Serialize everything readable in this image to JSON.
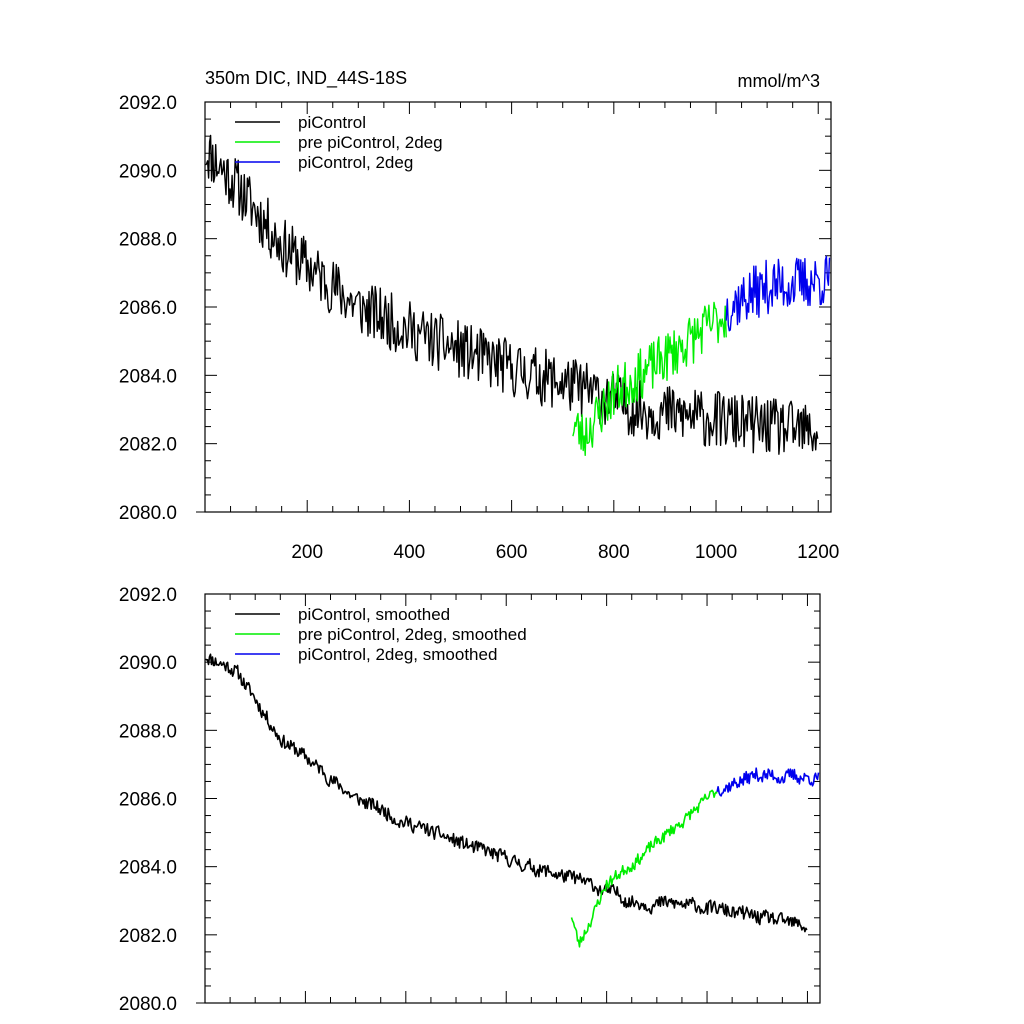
{
  "figure": {
    "title_left": "350m DIC, IND_44S-18S",
    "title_right": "mmol/m^3",
    "colors": {
      "black": "#000000",
      "green": "#00ee00",
      "blue": "#0000ee"
    }
  },
  "chart_data": [
    {
      "type": "line",
      "panel": "top",
      "xlim": [
        0,
        1225
      ],
      "ylim": [
        2080.0,
        2092.0
      ],
      "yticks": [
        2080.0,
        2082.0,
        2084.0,
        2086.0,
        2088.0,
        2090.0,
        2092.0
      ],
      "ytick_labels": [
        "2080.0",
        "2082.0",
        "2084.0",
        "2086.0",
        "2088.0",
        "2090.0",
        "2092.0"
      ],
      "xticks": [
        200,
        400,
        600,
        800,
        1000,
        1200
      ],
      "xtick_labels": [
        "200",
        "400",
        "600",
        "800",
        "1000",
        "1200"
      ],
      "legend_position": "top-left",
      "series": [
        {
          "name": "piControl",
          "color": "#000000",
          "x_range": [
            1,
            1200
          ],
          "noise": 0.85,
          "seed": 11,
          "trend": [
            [
              1,
              2090.6
            ],
            [
              60,
              2089.6
            ],
            [
              150,
              2087.8
            ],
            [
              300,
              2086.0
            ],
            [
              450,
              2085.0
            ],
            [
              600,
              2084.2
            ],
            [
              720,
              2083.7
            ],
            [
              850,
              2083.0
            ],
            [
              1000,
              2082.7
            ],
            [
              1200,
              2082.3
            ]
          ]
        },
        {
          "name": "pre piControl, 2deg",
          "color": "#00ee00",
          "x_range": [
            720,
            1020
          ],
          "noise": 0.75,
          "seed": 23,
          "trend": [
            [
              720,
              2082.6
            ],
            [
              740,
              2082.2
            ],
            [
              800,
              2083.5
            ],
            [
              900,
              2084.5
            ],
            [
              1020,
              2085.8
            ]
          ]
        },
        {
          "name": "piControl, 2deg",
          "color": "#0000ee",
          "x_range": [
            1020,
            1222
          ],
          "noise": 0.8,
          "seed": 37,
          "trend": [
            [
              1020,
              2086.0
            ],
            [
              1100,
              2086.6
            ],
            [
              1222,
              2086.8
            ]
          ]
        }
      ]
    },
    {
      "type": "line",
      "panel": "bottom",
      "xlim": [
        0,
        1225
      ],
      "ylim": [
        2080.0,
        2092.0
      ],
      "yticks": [
        2080.0,
        2082.0,
        2084.0,
        2086.0,
        2088.0,
        2090.0,
        2092.0
      ],
      "ytick_labels": [
        "2080.0",
        "2082.0",
        "2084.0",
        "2086.0",
        "2088.0",
        "2090.0",
        "2092.0"
      ],
      "xticks": [
        200,
        400,
        600,
        800,
        1000,
        1200
      ],
      "legend_position": "top-left",
      "series": [
        {
          "name": "piControl, smoothed",
          "color": "#000000",
          "x_range": [
            1,
            1200
          ],
          "noise": 0.35,
          "seed": 11,
          "trend": [
            [
              1,
              2090.2
            ],
            [
              60,
              2089.8
            ],
            [
              150,
              2087.8
            ],
            [
              300,
              2086.0
            ],
            [
              450,
              2085.0
            ],
            [
              600,
              2084.2
            ],
            [
              720,
              2083.7
            ],
            [
              850,
              2083.0
            ],
            [
              1000,
              2082.8
            ],
            [
              1200,
              2082.2
            ]
          ]
        },
        {
          "name": "pre piControl, 2deg, smoothed",
          "color": "#00ee00",
          "x_range": [
            730,
            1020
          ],
          "noise": 0.3,
          "seed": 23,
          "trend": [
            [
              730,
              2082.6
            ],
            [
              745,
              2081.7
            ],
            [
              800,
              2083.5
            ],
            [
              900,
              2084.7
            ],
            [
              1020,
              2086.2
            ]
          ]
        },
        {
          "name": "piControl, 2deg, smoothed",
          "color": "#0000ee",
          "x_range": [
            1020,
            1222
          ],
          "noise": 0.35,
          "seed": 37,
          "trend": [
            [
              1020,
              2086.3
            ],
            [
              1100,
              2086.7
            ],
            [
              1222,
              2086.6
            ]
          ]
        }
      ]
    }
  ]
}
